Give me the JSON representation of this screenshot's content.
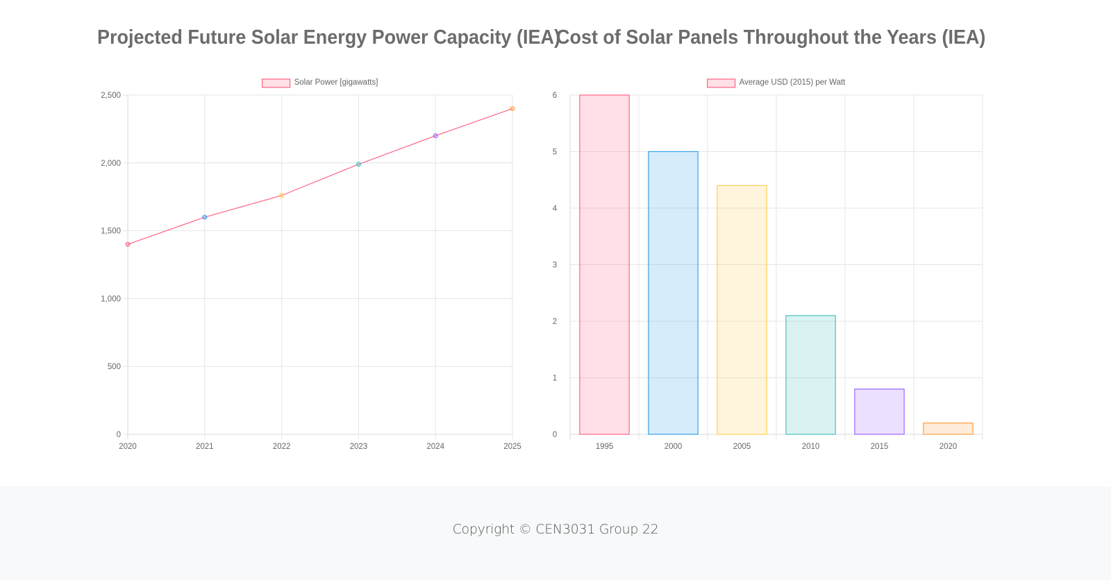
{
  "charts": {
    "left_title": "Projected Future Solar Energy Power Capacity (IEA)",
    "right_title": "Cost of Solar Panels Throughout the Years (IEA)"
  },
  "footer": {
    "copyright": "Copyright © CEN3031 Group 22"
  },
  "chart_data": [
    {
      "type": "line",
      "title": "Projected Future Solar Energy Power Capacity (IEA)",
      "x": [
        "2020",
        "2021",
        "2022",
        "2023",
        "2024",
        "2025"
      ],
      "series": [
        {
          "name": "Solar Power [gigawatts]",
          "values": [
            1400,
            1600,
            1760,
            1990,
            2200,
            2400
          ],
          "color": "#ff6384"
        }
      ],
      "point_colors": [
        "#ff6384",
        "#36a2eb",
        "#ffce56",
        "#4bc0c0",
        "#9966ff",
        "#ff9f40"
      ],
      "yticks": [
        "0",
        "500",
        "1,000",
        "1,500",
        "2,000",
        "2,500"
      ],
      "ylim": [
        0,
        2500
      ],
      "grid": true,
      "legend": "top-center"
    },
    {
      "type": "bar",
      "title": "Cost of Solar Panels Throughout the Years (IEA)",
      "categories": [
        "1995",
        "2000",
        "2005",
        "2010",
        "2015",
        "2020"
      ],
      "series": [
        {
          "name": "Average USD (2015) per Watt",
          "values": [
            6.0,
            5.0,
            4.4,
            2.1,
            0.8,
            0.2
          ]
        }
      ],
      "bar_colors": [
        "#ff6384",
        "#36a2eb",
        "#ffce56",
        "#4bc0c0",
        "#9966ff",
        "#ff9f40"
      ],
      "yticks": [
        "0",
        "1",
        "2",
        "3",
        "4",
        "5",
        "6"
      ],
      "ylim": [
        0,
        6
      ],
      "grid": true,
      "legend": "top-center"
    }
  ]
}
